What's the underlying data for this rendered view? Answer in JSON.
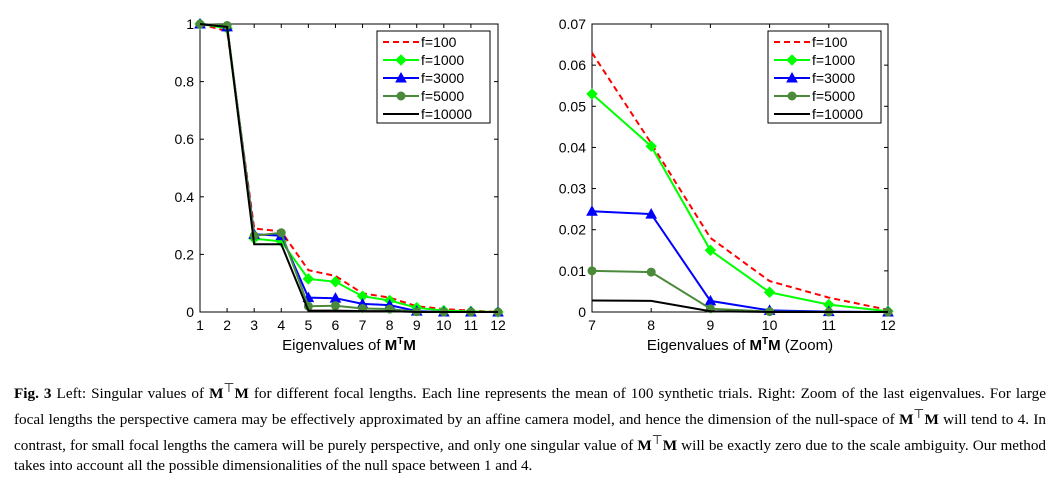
{
  "chart_data": [
    {
      "type": "line",
      "x": [
        1,
        2,
        3,
        4,
        5,
        6,
        7,
        8,
        9,
        10,
        11,
        12
      ],
      "xticks": [
        "1",
        "2",
        "3",
        "4",
        "5",
        "6",
        "7",
        "8",
        "9",
        "10",
        "11",
        "12"
      ],
      "ylim": [
        0,
        1
      ],
      "yticks": [
        "0",
        "0.2",
        "0.4",
        "0.6",
        "0.8",
        "1"
      ],
      "xlabel_parts": [
        "Eigenvalues of ",
        "M",
        "T",
        "M"
      ],
      "legend_position": "top-right",
      "series": [
        {
          "name": "f=100",
          "color": "#ff0000",
          "dash": "dashed",
          "marker": "none",
          "values": [
            1.0,
            0.975,
            0.29,
            0.28,
            0.145,
            0.125,
            0.065,
            0.05,
            0.02,
            0.01,
            0.005,
            0.0
          ]
        },
        {
          "name": "f=1000",
          "color": "#00ff00",
          "dash": "solid",
          "marker": "diamond",
          "values": [
            1.0,
            0.985,
            0.255,
            0.245,
            0.115,
            0.105,
            0.055,
            0.04,
            0.015,
            0.005,
            0.002,
            0.0
          ]
        },
        {
          "name": "f=3000",
          "color": "#0000ff",
          "dash": "solid",
          "marker": "triangle",
          "values": [
            1.0,
            0.99,
            0.27,
            0.265,
            0.05,
            0.048,
            0.028,
            0.024,
            0.003,
            0.0,
            0.0,
            0.0
          ]
        },
        {
          "name": "f=5000",
          "color": "#4a8a3a",
          "dash": "solid",
          "marker": "circle",
          "values": [
            1.0,
            0.995,
            0.265,
            0.275,
            0.02,
            0.022,
            0.012,
            0.01,
            0.001,
            0.0,
            0.0,
            0.0
          ]
        },
        {
          "name": "f=10000",
          "color": "#000000",
          "dash": "solid",
          "marker": "none",
          "values": [
            1.0,
            0.99,
            0.235,
            0.235,
            0.005,
            0.005,
            0.003,
            0.003,
            0.0,
            0.0,
            0.0,
            0.0
          ]
        }
      ]
    },
    {
      "type": "line",
      "x": [
        7,
        8,
        9,
        10,
        11,
        12
      ],
      "xticks": [
        "7",
        "8",
        "9",
        "10",
        "11",
        "12"
      ],
      "ylim": [
        0,
        0.07
      ],
      "yticks": [
        "0",
        "0.01",
        "0.02",
        "0.03",
        "0.04",
        "0.05",
        "0.06",
        "0.07"
      ],
      "xlabel_parts": [
        "Eigenvalues of ",
        "M",
        "T",
        "M",
        " (Zoom)"
      ],
      "legend_position": "top-right",
      "series": [
        {
          "name": "f=100",
          "color": "#ff0000",
          "dash": "dashed",
          "marker": "none",
          "values": [
            0.063,
            0.041,
            0.018,
            0.0075,
            0.0035,
            0.0005
          ]
        },
        {
          "name": "f=1000",
          "color": "#00ff00",
          "dash": "solid",
          "marker": "diamond",
          "values": [
            0.053,
            0.0403,
            0.015,
            0.0048,
            0.0018,
            0.0002
          ]
        },
        {
          "name": "f=3000",
          "color": "#0000ff",
          "dash": "solid",
          "marker": "triangle",
          "values": [
            0.0245,
            0.0238,
            0.0027,
            0.0004,
            0.0001,
            0.0
          ]
        },
        {
          "name": "f=5000",
          "color": "#4a8a3a",
          "dash": "solid",
          "marker": "circle",
          "values": [
            0.01,
            0.0097,
            0.0008,
            0.0001,
            0.0,
            0.0
          ]
        },
        {
          "name": "f=10000",
          "color": "#000000",
          "dash": "solid",
          "marker": "none",
          "values": [
            0.0028,
            0.0027,
            0.0002,
            0.0,
            0.0,
            0.0
          ]
        }
      ]
    }
  ],
  "caption": {
    "fig_label": "Fig. 3",
    "text_1": " Left: Singular values of ",
    "math_1": "M",
    "sup_1": "⊤",
    "math_1b": "M",
    "text_2": " for different focal lengths. Each line represents the mean of 100 synthetic trials. Right: Zoom of the last eigenvalues. For large focal lengths the perspective camera may be effectively approximated by an affine camera model, and hence the dimension of the null-space of ",
    "math_2": "M",
    "sup_2": "⊤",
    "math_2b": "M",
    "text_3": " will tend to 4. In contrast, for small focal lengths the camera will be purely perspective, and only one singular value of ",
    "math_3": "M",
    "sup_3": "⊤",
    "math_3b": "M",
    "text_4": " will be exactly zero due to the scale ambiguity. Our method takes into account all the possible dimensionalities of the null space between 1 and 4."
  }
}
